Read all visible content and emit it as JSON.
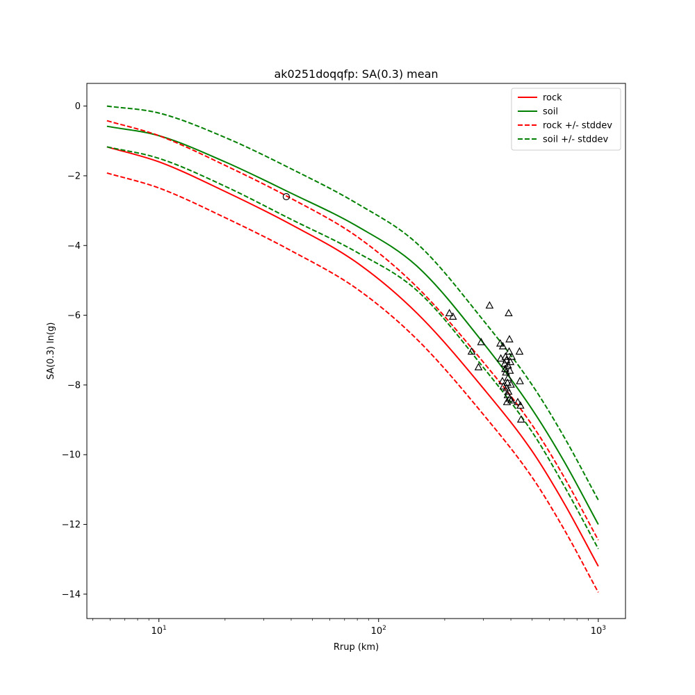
{
  "chart_data": {
    "type": "scatter",
    "title": "ak0251doqqfp: SA(0.3) mean",
    "xlabel": "Rrup (km)",
    "ylabel": "SA(0.3) ln(g)",
    "xscale": "log",
    "xlim": [
      4.7,
      1330
    ],
    "ylim": [
      -14.7,
      0.65
    ],
    "xticks": [
      {
        "value": 10,
        "base": "10",
        "exp": "1"
      },
      {
        "value": 100,
        "base": "10",
        "exp": "2"
      },
      {
        "value": 1000,
        "base": "10",
        "exp": "3"
      }
    ],
    "yticks": [
      {
        "value": 0,
        "label": "0"
      },
      {
        "value": -2,
        "label": "−2"
      },
      {
        "value": -4,
        "label": "−4"
      },
      {
        "value": -6,
        "label": "−6"
      },
      {
        "value": -8,
        "label": "−8"
      },
      {
        "value": -10,
        "label": "−10"
      },
      {
        "value": -12,
        "label": "−12"
      },
      {
        "value": -14,
        "label": "−14"
      }
    ],
    "grid": false,
    "legend_position": "top-right",
    "series": [
      {
        "name": "rock",
        "color": "#ff0000",
        "style": "solid",
        "x": [
          5.8,
          10,
          20,
          40,
          80,
          150,
          300,
          500,
          700,
          1000
        ],
        "y": [
          -1.17,
          -1.6,
          -2.45,
          -3.4,
          -4.5,
          -5.95,
          -8.1,
          -9.9,
          -11.4,
          -13.2
        ]
      },
      {
        "name": "soil",
        "color": "#008000",
        "style": "solid",
        "x": [
          5.8,
          10,
          20,
          40,
          80,
          150,
          300,
          500,
          700,
          1000
        ],
        "y": [
          -0.58,
          -0.85,
          -1.6,
          -2.5,
          -3.45,
          -4.6,
          -6.8,
          -8.7,
          -10.2,
          -12.0
        ]
      },
      {
        "name": "rock +/- stddev",
        "color": "#ff0000",
        "style": "dashed",
        "x": [
          5.8,
          10,
          20,
          40,
          80,
          150,
          300,
          500,
          700,
          1000
        ],
        "y": [
          -0.42,
          -0.85,
          -1.7,
          -2.65,
          -3.75,
          -5.2,
          -7.35,
          -9.15,
          -10.65,
          -12.45
        ]
      },
      {
        "name": "rock +/- stddev",
        "color": "#ff0000",
        "style": "dashed",
        "legend": false,
        "x": [
          5.8,
          10,
          20,
          40,
          80,
          150,
          300,
          500,
          700,
          1000
        ],
        "y": [
          -1.92,
          -2.35,
          -3.2,
          -4.15,
          -5.25,
          -6.7,
          -8.85,
          -10.65,
          -12.15,
          -13.95
        ]
      },
      {
        "name": "soil +/- stddev",
        "color": "#008000",
        "style": "dashed",
        "x": [
          5.8,
          10,
          20,
          40,
          80,
          150,
          300,
          500,
          700,
          1000
        ],
        "y": [
          0.0,
          -0.2,
          -0.9,
          -1.8,
          -2.8,
          -3.95,
          -6.15,
          -8.0,
          -9.5,
          -11.3
        ]
      },
      {
        "name": "soil +/- stddev",
        "color": "#008000",
        "style": "dashed",
        "legend": false,
        "x": [
          5.8,
          10,
          20,
          40,
          80,
          150,
          300,
          500,
          700,
          1000
        ],
        "y": [
          -1.17,
          -1.5,
          -2.3,
          -3.25,
          -4.2,
          -5.3,
          -7.5,
          -9.35,
          -10.9,
          -12.7
        ]
      }
    ],
    "points": [
      {
        "x": 38,
        "y": -2.6,
        "marker": "circle"
      },
      {
        "x": 210,
        "y": -5.95,
        "marker": "triangle"
      },
      {
        "x": 218,
        "y": -6.05,
        "marker": "triangle"
      },
      {
        "x": 265,
        "y": -7.05,
        "marker": "triangle"
      },
      {
        "x": 285,
        "y": -7.5,
        "marker": "triangle"
      },
      {
        "x": 293,
        "y": -6.78,
        "marker": "triangle"
      },
      {
        "x": 320,
        "y": -5.73,
        "marker": "triangle"
      },
      {
        "x": 358,
        "y": -6.82,
        "marker": "triangle"
      },
      {
        "x": 360,
        "y": -7.25,
        "marker": "triangle"
      },
      {
        "x": 368,
        "y": -6.9,
        "marker": "triangle"
      },
      {
        "x": 366,
        "y": -7.9,
        "marker": "triangle"
      },
      {
        "x": 370,
        "y": -8.05,
        "marker": "triangle"
      },
      {
        "x": 375,
        "y": -7.4,
        "marker": "triangle"
      },
      {
        "x": 377,
        "y": -7.55,
        "marker": "triangle"
      },
      {
        "x": 378,
        "y": -7.2,
        "marker": "triangle"
      },
      {
        "x": 380,
        "y": -7.65,
        "marker": "triangle"
      },
      {
        "x": 382,
        "y": -7.3,
        "marker": "triangle"
      },
      {
        "x": 383,
        "y": -8.1,
        "marker": "triangle"
      },
      {
        "x": 384,
        "y": -8.5,
        "marker": "triangle"
      },
      {
        "x": 386,
        "y": -7.95,
        "marker": "triangle"
      },
      {
        "x": 387,
        "y": -8.3,
        "marker": "triangle"
      },
      {
        "x": 388,
        "y": -7.45,
        "marker": "triangle"
      },
      {
        "x": 389,
        "y": -7.8,
        "marker": "triangle"
      },
      {
        "x": 390,
        "y": -8.2,
        "marker": "triangle"
      },
      {
        "x": 391,
        "y": -5.95,
        "marker": "triangle"
      },
      {
        "x": 393,
        "y": -7.05,
        "marker": "triangle"
      },
      {
        "x": 394,
        "y": -6.7,
        "marker": "triangle"
      },
      {
        "x": 395,
        "y": -8.4,
        "marker": "triangle"
      },
      {
        "x": 396,
        "y": -7.6,
        "marker": "triangle"
      },
      {
        "x": 398,
        "y": -7.35,
        "marker": "triangle"
      },
      {
        "x": 400,
        "y": -8.0,
        "marker": "triangle"
      },
      {
        "x": 402,
        "y": -8.45,
        "marker": "triangle"
      },
      {
        "x": 404,
        "y": -7.2,
        "marker": "triangle"
      },
      {
        "x": 430,
        "y": -8.5,
        "marker": "triangle"
      },
      {
        "x": 438,
        "y": -7.05,
        "marker": "triangle"
      },
      {
        "x": 440,
        "y": -7.9,
        "marker": "triangle"
      },
      {
        "x": 442,
        "y": -8.6,
        "marker": "triangle"
      },
      {
        "x": 445,
        "y": -9.0,
        "marker": "triangle"
      }
    ]
  }
}
